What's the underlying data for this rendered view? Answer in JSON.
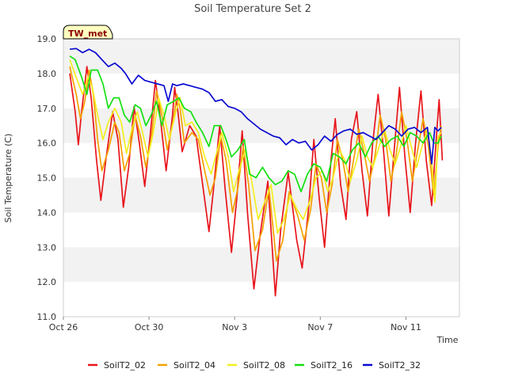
{
  "chart_data": {
    "type": "line",
    "title": "Soil Temperature Set 2",
    "xlabel": "Time",
    "ylabel": "Soil Temperature (C)",
    "badge": "TW_met",
    "ylim": [
      11.0,
      19.0
    ],
    "xlim": [
      0,
      18.5
    ],
    "y_ticks": [
      "11.0",
      "12.0",
      "13.0",
      "14.0",
      "15.0",
      "16.0",
      "17.0",
      "18.0",
      "19.0"
    ],
    "x_ticks": [
      {
        "day": 0,
        "label": "Oct 26"
      },
      {
        "day": 4,
        "label": "Oct 30"
      },
      {
        "day": 8,
        "label": "Nov 3"
      },
      {
        "day": 12,
        "label": "Nov 7"
      },
      {
        "day": 16,
        "label": "Nov 11"
      }
    ],
    "grid": true,
    "legend_position": "bottom",
    "series": [
      {
        "name": "SoilT2_02",
        "color": "#e8141b",
        "x": [
          0.3,
          0.55,
          0.7,
          0.85,
          1.1,
          1.3,
          1.55,
          1.75,
          2.0,
          2.3,
          2.55,
          2.8,
          3.05,
          3.3,
          3.55,
          3.8,
          4.05,
          4.3,
          4.55,
          4.8,
          5.1,
          5.2,
          5.35,
          5.55,
          5.9,
          6.2,
          6.55,
          6.8,
          7.0,
          7.3,
          7.55,
          7.85,
          8.1,
          8.35,
          8.6,
          8.9,
          9.2,
          9.55,
          9.9,
          10.15,
          10.5,
          10.9,
          11.15,
          11.45,
          11.7,
          11.95,
          12.2,
          12.5,
          12.7,
          12.95,
          13.2,
          13.45,
          13.7,
          13.95,
          14.2,
          14.45,
          14.7,
          14.95,
          15.2,
          15.45,
          15.7,
          15.95,
          16.2,
          16.45,
          16.7,
          16.95,
          17.2,
          17.4,
          17.55,
          17.7
        ],
        "y": [
          18.0,
          16.9,
          15.95,
          16.9,
          18.2,
          17.3,
          15.5,
          14.35,
          15.6,
          16.9,
          16.1,
          14.15,
          15.3,
          17.05,
          16.0,
          14.75,
          16.2,
          17.8,
          16.6,
          15.2,
          16.8,
          17.6,
          16.9,
          15.75,
          16.5,
          16.2,
          14.6,
          13.45,
          14.6,
          16.5,
          14.7,
          12.85,
          14.4,
          16.35,
          14.0,
          11.8,
          13.4,
          14.9,
          11.6,
          13.5,
          15.15,
          13.2,
          12.4,
          14.1,
          16.1,
          14.4,
          13.0,
          15.5,
          16.7,
          14.8,
          13.8,
          16.1,
          16.9,
          15.2,
          13.9,
          16.0,
          17.4,
          15.8,
          13.9,
          15.8,
          17.6,
          15.6,
          14.0,
          16.0,
          17.5,
          15.5,
          14.2,
          16.0,
          17.25,
          15.5
        ]
      },
      {
        "name": "SoilT2_04",
        "color": "#f5a000",
        "x": [
          0.3,
          0.6,
          0.8,
          1.0,
          1.2,
          1.4,
          1.6,
          1.8,
          2.1,
          2.4,
          2.6,
          2.85,
          3.1,
          3.35,
          3.6,
          3.85,
          4.1,
          4.35,
          4.6,
          4.85,
          5.15,
          5.3,
          5.45,
          5.65,
          6.0,
          6.3,
          6.6,
          6.85,
          7.1,
          7.35,
          7.6,
          7.9,
          8.15,
          8.4,
          8.65,
          8.95,
          9.3,
          9.6,
          9.95,
          10.25,
          10.55,
          10.95,
          11.25,
          11.55,
          11.8,
          12.05,
          12.3,
          12.55,
          12.8,
          13.05,
          13.3,
          13.55,
          13.8,
          14.05,
          14.3,
          14.55,
          14.8,
          15.05,
          15.3,
          15.55,
          15.8,
          16.05,
          16.3,
          16.55,
          16.8,
          17.05,
          17.3,
          17.5,
          17.65
        ],
        "y": [
          18.2,
          17.4,
          16.7,
          17.2,
          18.1,
          17.4,
          16.1,
          15.2,
          15.8,
          16.6,
          16.3,
          15.2,
          15.7,
          16.8,
          16.2,
          15.3,
          16.1,
          17.5,
          16.8,
          15.8,
          16.7,
          17.4,
          17.0,
          16.0,
          16.3,
          16.1,
          15.2,
          14.5,
          15.0,
          16.2,
          15.5,
          14.0,
          14.7,
          15.9,
          14.8,
          12.9,
          13.5,
          14.7,
          12.6,
          13.2,
          14.6,
          13.9,
          13.2,
          14.1,
          15.4,
          15.0,
          14.0,
          14.8,
          16.1,
          15.5,
          14.6,
          15.5,
          16.4,
          15.7,
          14.9,
          15.6,
          16.8,
          16.1,
          14.9,
          15.7,
          16.9,
          16.1,
          14.9,
          15.8,
          16.7,
          15.9,
          14.5,
          15.9,
          16.5
        ]
      },
      {
        "name": "SoilT2_08",
        "color": "#f2ef1f",
        "x": [
          0.3,
          0.65,
          0.9,
          1.15,
          1.35,
          1.6,
          1.85,
          2.1,
          2.4,
          2.7,
          2.95,
          3.2,
          3.45,
          3.7,
          3.95,
          4.2,
          4.45,
          4.7,
          4.95,
          5.25,
          5.45,
          5.7,
          6.0,
          6.3,
          6.6,
          6.9,
          7.15,
          7.4,
          7.7,
          7.95,
          8.2,
          8.5,
          8.8,
          9.1,
          9.4,
          9.7,
          10.0,
          10.3,
          10.6,
          10.9,
          11.2,
          11.5,
          11.8,
          12.1,
          12.35,
          12.6,
          12.9,
          13.15,
          13.4,
          13.7,
          13.95,
          14.2,
          14.45,
          14.7,
          15.0,
          15.25,
          15.5,
          15.75,
          16.0,
          16.25,
          16.5,
          16.75,
          17.0,
          17.2,
          17.35,
          17.5,
          17.65
        ],
        "y": [
          18.4,
          17.8,
          17.4,
          17.9,
          17.6,
          16.8,
          16.1,
          16.6,
          17.0,
          16.6,
          15.7,
          16.4,
          16.9,
          16.3,
          15.6,
          16.3,
          17.3,
          16.8,
          16.1,
          16.9,
          17.3,
          16.5,
          16.6,
          16.3,
          15.6,
          15.1,
          15.7,
          16.3,
          15.6,
          14.6,
          15.2,
          15.8,
          14.9,
          13.8,
          14.3,
          14.8,
          13.4,
          13.8,
          14.5,
          14.1,
          13.8,
          14.3,
          15.0,
          15.2,
          14.6,
          15.0,
          15.8,
          15.5,
          14.9,
          15.5,
          16.2,
          15.6,
          15.3,
          15.8,
          16.4,
          15.8,
          15.4,
          15.9,
          16.5,
          15.9,
          15.3,
          15.9,
          16.4,
          15.5,
          14.3,
          16.2,
          16.3
        ]
      },
      {
        "name": "SoilT2_16",
        "color": "#14e011",
        "x": [
          0.3,
          0.55,
          0.85,
          1.1,
          1.3,
          1.6,
          1.85,
          2.1,
          2.35,
          2.6,
          2.85,
          3.1,
          3.35,
          3.6,
          3.85,
          4.1,
          4.35,
          4.6,
          4.85,
          5.15,
          5.4,
          5.65,
          5.95,
          6.2,
          6.5,
          6.8,
          7.05,
          7.35,
          7.6,
          7.85,
          8.15,
          8.45,
          8.7,
          9.0,
          9.3,
          9.6,
          9.9,
          10.2,
          10.5,
          10.8,
          11.1,
          11.4,
          11.7,
          12.0,
          12.3,
          12.6,
          12.9,
          13.2,
          13.5,
          13.8,
          14.1,
          14.4,
          14.7,
          15.0,
          15.3,
          15.6,
          15.9,
          16.2,
          16.5,
          16.8,
          17.1,
          17.3,
          17.5,
          17.65
        ],
        "y": [
          18.5,
          18.4,
          17.9,
          17.4,
          18.1,
          18.1,
          17.7,
          17.0,
          17.3,
          17.3,
          16.8,
          16.6,
          17.1,
          17.0,
          16.5,
          16.8,
          17.2,
          16.5,
          17.1,
          17.2,
          17.3,
          17.0,
          16.9,
          16.6,
          16.3,
          15.9,
          16.5,
          16.5,
          16.1,
          15.6,
          15.8,
          16.1,
          15.1,
          15.0,
          15.3,
          15.0,
          14.8,
          14.9,
          15.2,
          15.1,
          14.6,
          15.1,
          15.4,
          15.3,
          14.9,
          15.7,
          15.6,
          15.4,
          15.8,
          16.0,
          15.6,
          16.0,
          16.2,
          15.9,
          16.1,
          16.2,
          15.9,
          16.3,
          16.2,
          16.0,
          16.3,
          16.0,
          16.0,
          16.2
        ]
      },
      {
        "name": "SoilT2_32",
        "color": "#0a0ad1",
        "x": [
          0.3,
          0.6,
          0.9,
          1.2,
          1.5,
          1.8,
          2.1,
          2.4,
          2.7,
          2.9,
          3.2,
          3.5,
          3.8,
          4.1,
          4.4,
          4.7,
          4.9,
          5.1,
          5.3,
          5.6,
          5.9,
          6.2,
          6.5,
          6.8,
          7.1,
          7.4,
          7.7,
          8.0,
          8.3,
          8.6,
          8.9,
          9.2,
          9.5,
          9.8,
          10.1,
          10.4,
          10.7,
          11.0,
          11.3,
          11.6,
          11.9,
          12.2,
          12.5,
          12.8,
          13.1,
          13.4,
          13.7,
          14.0,
          14.3,
          14.6,
          14.9,
          15.2,
          15.5,
          15.8,
          16.1,
          16.4,
          16.7,
          17.0,
          17.2,
          17.35,
          17.5,
          17.65
        ],
        "y": [
          18.7,
          18.72,
          18.6,
          18.7,
          18.6,
          18.4,
          18.2,
          18.3,
          18.15,
          18.0,
          17.7,
          17.95,
          17.8,
          17.75,
          17.7,
          17.65,
          17.2,
          17.7,
          17.65,
          17.7,
          17.65,
          17.6,
          17.55,
          17.45,
          17.2,
          17.25,
          17.05,
          17.0,
          16.9,
          16.7,
          16.55,
          16.4,
          16.3,
          16.2,
          16.15,
          15.95,
          16.1,
          16.0,
          16.05,
          15.8,
          15.95,
          16.2,
          16.05,
          16.25,
          16.35,
          16.4,
          16.25,
          16.3,
          16.2,
          16.1,
          16.3,
          16.5,
          16.4,
          16.2,
          16.4,
          16.45,
          16.3,
          16.45,
          15.4,
          16.45,
          16.35,
          16.45
        ]
      }
    ]
  }
}
